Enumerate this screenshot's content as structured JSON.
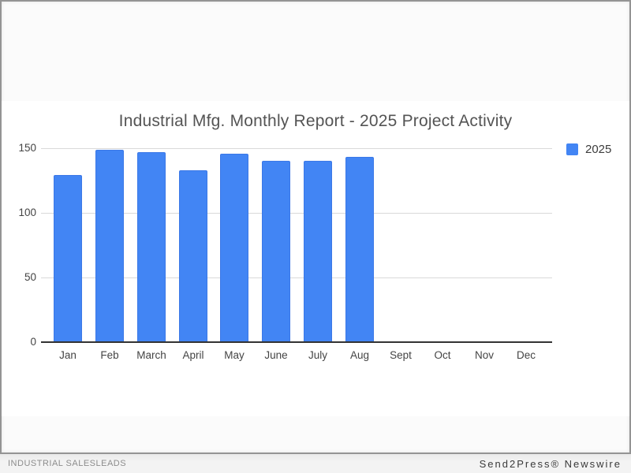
{
  "chart_data": {
    "type": "bar",
    "title": "Industrial Mfg. Monthly Report - 2025 Project Activity",
    "categories": [
      "Jan",
      "Feb",
      "March",
      "April",
      "May",
      "June",
      "July",
      "Aug",
      "Sept",
      "Oct",
      "Nov",
      "Dec"
    ],
    "series": [
      {
        "name": "2025",
        "color": "#4285f4",
        "values": [
          129,
          149,
          147,
          133,
          146,
          140,
          140,
          143,
          null,
          null,
          null,
          null
        ]
      }
    ],
    "xlabel": "",
    "ylabel": "",
    "y_ticks": [
      0,
      50,
      100,
      150
    ],
    "ylim": [
      0,
      150
    ],
    "grid": true,
    "legend_position": "right"
  },
  "footer": {
    "left": "INDUSTRIAL SALESLEADS",
    "right": "Send2Press® Newswire"
  },
  "colors": {
    "bar": "#4285f4",
    "gridline": "#d9d9d9",
    "axis": "#333333",
    "tick_label": "#444444",
    "title": "#545454",
    "frame_border": "#949494",
    "footer_bg": "#f1f1f1"
  }
}
